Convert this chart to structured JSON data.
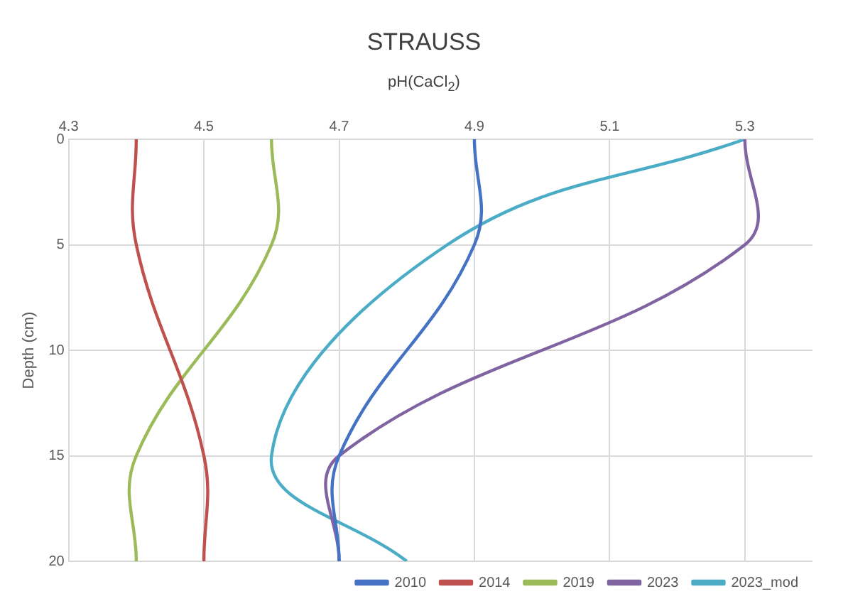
{
  "chart_data": {
    "type": "line",
    "title": "STRAUSS",
    "xlabel": "pH(CaCl$_{2}$)",
    "ylabel": "Depth (cm)",
    "xlim": [
      4.3,
      5.4
    ],
    "xticks": [
      4.3,
      4.5,
      4.7,
      4.9,
      5.1,
      5.3
    ],
    "ylim": [
      20,
      0
    ],
    "yticks": [
      0,
      5,
      10,
      15,
      20
    ],
    "grid": true,
    "legend": "bottom",
    "marker": "none",
    "line_style": "solid",
    "series": [
      {
        "name": "2010",
        "color": "#4472c4",
        "x": [
          4.9,
          4.9,
          4.7,
          4.7
        ],
        "values": [
          0,
          5,
          15,
          20
        ]
      },
      {
        "name": "2014",
        "color": "#c0504d",
        "x": [
          4.4,
          4.4,
          4.5,
          4.5
        ],
        "values": [
          0,
          5,
          15,
          20
        ]
      },
      {
        "name": "2019",
        "color": "#9bbb59",
        "x": [
          4.6,
          4.6,
          4.4,
          4.4
        ],
        "values": [
          0,
          5,
          15,
          20
        ]
      },
      {
        "name": "2023",
        "color": "#8064a2",
        "x": [
          5.3,
          5.3,
          4.7,
          4.7
        ],
        "values": [
          0,
          5,
          15,
          20
        ]
      },
      {
        "name": "2023_mod",
        "color": "#4bacc6",
        "x": [
          5.3,
          4.86,
          4.6,
          4.8
        ],
        "values": [
          0,
          5,
          15,
          20
        ]
      }
    ]
  }
}
